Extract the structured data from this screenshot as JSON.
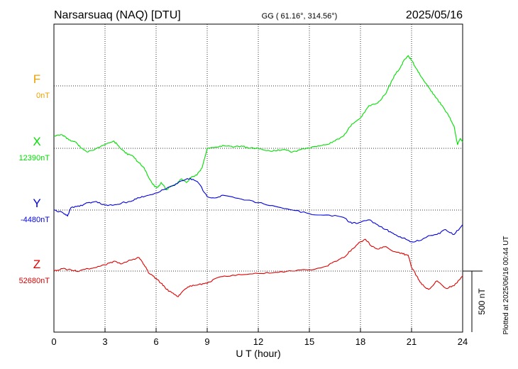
{
  "header": {
    "station": "Narsarsuaq (NAQ)  [DTU]",
    "coords": "GG ( 61.16°, 314.56°)",
    "date": "2025/05/16"
  },
  "footer": {
    "plotted": "Plotted at 2025/06/16 00:44 UT"
  },
  "chart_data": {
    "type": "line",
    "xlabel": "U T (hour)",
    "xlim": [
      0,
      24
    ],
    "xticks": [
      "0",
      "3",
      "6",
      "9",
      "12",
      "15",
      "18",
      "21",
      "24"
    ],
    "grid": true,
    "scale_bar": {
      "label": "500 nT",
      "value_nT": 500
    },
    "series": [
      {
        "name": "F",
        "baseline_label": "0nT",
        "color": "#f0a000",
        "x": [],
        "y": []
      },
      {
        "name": "X",
        "baseline_label": "12390nT",
        "color": "#00e000",
        "x": [
          0,
          0.5,
          0.8,
          1.0,
          1.3,
          1.6,
          2.0,
          2.5,
          3.0,
          3.5,
          3.8,
          4.2,
          4.6,
          5.0,
          5.3,
          5.6,
          5.9,
          6.1,
          6.3,
          6.6,
          6.9,
          7.2,
          7.5,
          7.8,
          8.1,
          8.4,
          8.7,
          9.0,
          9.5,
          10.0,
          10.5,
          11.0,
          11.5,
          12.0,
          12.5,
          13.0,
          13.5,
          14.0,
          14.5,
          15.0,
          15.5,
          16.0,
          16.5,
          17.0,
          17.5,
          18.0,
          18.5,
          19.0,
          19.5,
          20.0,
          20.3,
          20.6,
          20.8,
          21.0,
          21.3,
          21.6,
          22.0,
          22.4,
          22.8,
          23.2,
          23.5,
          23.7,
          23.85,
          24.0
        ],
        "y": [
          100,
          110,
          80,
          60,
          50,
          0,
          -30,
          0,
          30,
          60,
          20,
          -40,
          -60,
          -120,
          -160,
          -250,
          -310,
          -320,
          -280,
          -340,
          -310,
          -290,
          -250,
          -280,
          -230,
          -220,
          -160,
          0,
          10,
          20,
          10,
          20,
          0,
          0,
          -20,
          -20,
          -10,
          -30,
          -10,
          0,
          20,
          30,
          60,
          100,
          200,
          250,
          350,
          370,
          450,
          600,
          650,
          730,
          760,
          720,
          650,
          580,
          500,
          420,
          350,
          260,
          180,
          30,
          80,
          50
        ]
      },
      {
        "name": "Y",
        "baseline_label": "-4480nT",
        "color": "#0000e0",
        "x": [
          0,
          0.5,
          0.8,
          1.0,
          1.5,
          2.0,
          2.5,
          3.0,
          3.5,
          4.0,
          4.5,
          5.0,
          5.5,
          6.0,
          6.5,
          7.0,
          7.5,
          8.0,
          8.5,
          9.0,
          9.5,
          10.0,
          11.0,
          12.0,
          13.0,
          14.0,
          15.0,
          16.0,
          17.0,
          17.5,
          18.0,
          18.5,
          19.0,
          19.5,
          20.0,
          20.5,
          21.0,
          21.5,
          22.0,
          22.5,
          23.0,
          23.5,
          24.0
        ],
        "y": [
          0,
          -20,
          -50,
          20,
          30,
          60,
          70,
          40,
          40,
          60,
          70,
          100,
          120,
          140,
          170,
          200,
          240,
          260,
          220,
          110,
          100,
          120,
          90,
          60,
          30,
          0,
          -30,
          -40,
          -60,
          -110,
          -100,
          -80,
          -120,
          -160,
          -200,
          -230,
          -260,
          -250,
          -210,
          -200,
          -160,
          -200,
          -120
        ]
      },
      {
        "name": "Z",
        "baseline_label": "52680nT",
        "color": "#e00000",
        "x": [
          0,
          0.5,
          1.0,
          1.5,
          2.0,
          2.5,
          3.0,
          3.5,
          4.0,
          4.5,
          5.0,
          5.3,
          5.6,
          6.0,
          6.3,
          6.6,
          7.0,
          7.3,
          7.6,
          8.0,
          8.5,
          9.0,
          9.5,
          10.0,
          11.0,
          12.0,
          13.0,
          14.0,
          15.0,
          16.0,
          16.5,
          17.0,
          17.5,
          18.0,
          18.3,
          18.6,
          19.0,
          19.5,
          20.0,
          20.5,
          20.8,
          21.0,
          21.3,
          21.6,
          22.0,
          22.5,
          23.0,
          23.5,
          24.0
        ],
        "y": [
          0,
          20,
          10,
          0,
          20,
          30,
          50,
          80,
          60,
          90,
          110,
          50,
          -20,
          -60,
          -100,
          -150,
          -180,
          -210,
          -160,
          -120,
          -110,
          -100,
          -60,
          -40,
          -30,
          -20,
          -10,
          0,
          10,
          40,
          80,
          110,
          180,
          240,
          260,
          210,
          180,
          200,
          160,
          140,
          130,
          30,
          -40,
          -110,
          -150,
          -80,
          -140,
          -120,
          -40
        ]
      }
    ]
  }
}
